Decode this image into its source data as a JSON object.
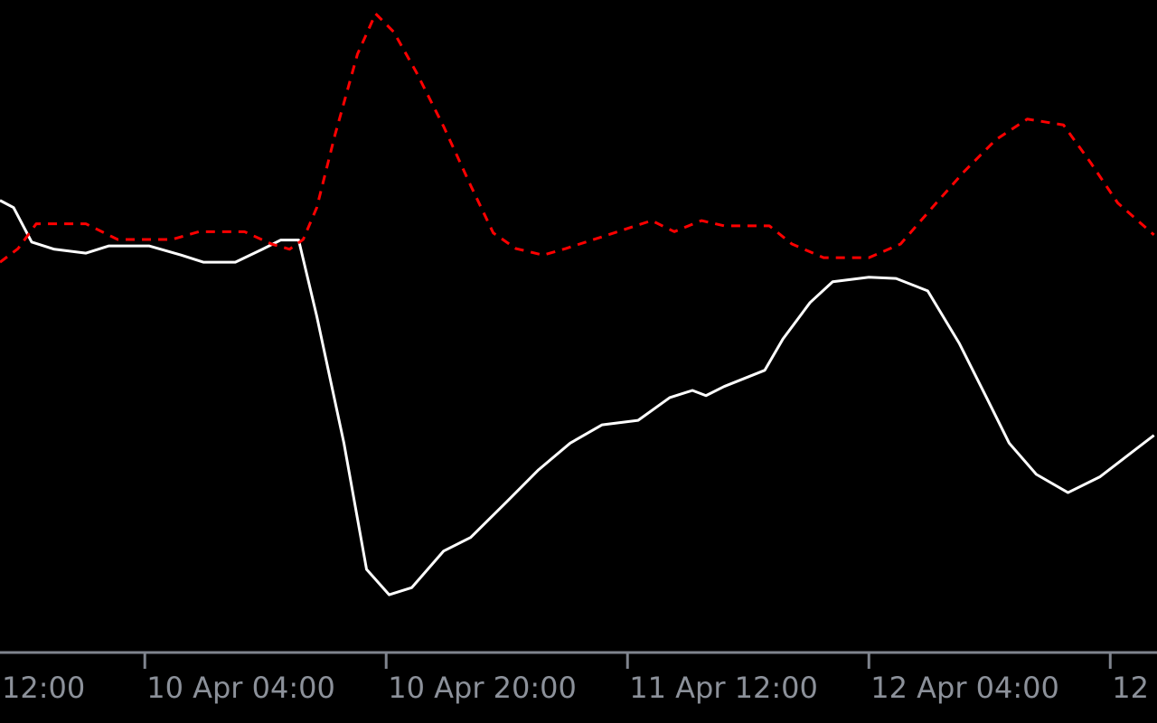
{
  "chart_data": {
    "type": "line",
    "background": "#000000",
    "xlim": [
      -5.6,
      71.1
    ],
    "ylim": [
      0,
      100
    ],
    "xticks": [
      {
        "value": -12,
        "label": "12:00"
      },
      {
        "value": 4,
        "label": "10 Apr 04:00"
      },
      {
        "value": 20,
        "label": "10 Apr 20:00"
      },
      {
        "value": 36,
        "label": "11 Apr 12:00"
      },
      {
        "value": 52,
        "label": "12 Apr 04:00"
      },
      {
        "value": 68,
        "label": "12"
      }
    ],
    "series": [
      {
        "color": "#ffffff",
        "dash": false,
        "x": [
          -5.6,
          -4.7,
          -3.5,
          -2.0,
          0.1,
          1.6,
          4.3,
          6.4,
          7.9,
          10.0,
          11.8,
          13.0,
          14.2,
          15.4,
          17.2,
          18.7,
          20.2,
          21.7,
          23.8,
          25.6,
          28.0,
          30.1,
          32.2,
          34.3,
          36.7,
          38.8,
          40.3,
          41.2,
          42.4,
          45.1,
          46.3,
          48.1,
          49.6,
          52.0,
          53.8,
          55.9,
          58.0,
          59.8,
          61.3,
          63.1,
          65.2,
          67.3,
          69.1,
          70.9
        ],
        "values": [
          69.2,
          68.1,
          62.8,
          61.7,
          61.1,
          62.2,
          62.2,
          60.8,
          59.7,
          59.7,
          61.7,
          63.1,
          63.1,
          51.4,
          31.9,
          12.5,
          8.6,
          9.7,
          15.3,
          17.4,
          22.9,
          27.8,
          31.9,
          34.7,
          35.4,
          38.9,
          40.0,
          39.2,
          40.6,
          43.1,
          47.9,
          53.5,
          56.7,
          57.4,
          57.2,
          55.3,
          47.2,
          38.9,
          31.9,
          27.1,
          24.3,
          26.7,
          29.9,
          33.1
        ]
      },
      {
        "color": "#ff0000",
        "dash": true,
        "x": [
          -5.6,
          -4.4,
          -3.2,
          0.1,
          2.2,
          5.8,
          7.6,
          10.6,
          12.4,
          13.6,
          14.5,
          15.4,
          16.6,
          18.1,
          19.3,
          20.5,
          22.0,
          23.8,
          25.6,
          27.1,
          28.6,
          30.4,
          31.9,
          34.3,
          37.6,
          39.1,
          40.9,
          42.4,
          45.4,
          46.9,
          49.0,
          52.0,
          54.1,
          56.2,
          58.3,
          60.4,
          62.5,
          64.9,
          66.7,
          68.5,
          70.9
        ],
        "values": [
          59.7,
          61.8,
          65.6,
          65.6,
          63.2,
          63.2,
          64.4,
          64.4,
          62.5,
          61.7,
          63.2,
          68.1,
          79.2,
          91.7,
          97.9,
          95.1,
          88.9,
          80.6,
          71.5,
          64.2,
          61.8,
          60.8,
          61.8,
          63.6,
          66.1,
          64.4,
          66.1,
          65.3,
          65.3,
          62.5,
          60.4,
          60.4,
          62.5,
          68.1,
          73.6,
          78.5,
          81.7,
          80.8,
          75.0,
          68.8,
          63.9
        ]
      }
    ]
  }
}
